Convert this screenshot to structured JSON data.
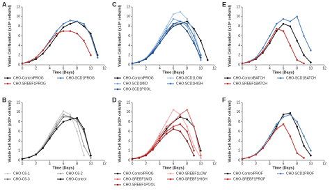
{
  "chart_data": [
    {
      "type": "line",
      "label": "A",
      "x_label": "Time (Days)",
      "y_label": "Viable Cell Number (x10⁶ cells/ml)",
      "x": [
        0,
        1,
        2,
        3,
        4,
        5,
        6,
        7,
        8,
        9,
        10,
        11
      ],
      "xlim": [
        0,
        12
      ],
      "xticks": [
        0,
        2,
        4,
        6,
        8,
        10,
        12
      ],
      "ylim": [
        0,
        12
      ],
      "yticks": [
        0,
        2,
        4,
        6,
        8,
        10,
        12
      ],
      "series": [
        {
          "name": "CHO-ControlPROG",
          "color": "#111111",
          "values": [
            0.3,
            0.6,
            1.2,
            2.3,
            4,
            6,
            7.8,
            8.5,
            9,
            8,
            6.5,
            2
          ]
        },
        {
          "name": "CHO-SCD1PROG",
          "color": "#4a7ebb",
          "values": [
            0.3,
            0.7,
            1.5,
            3,
            5,
            7,
            8.5,
            9.2,
            9,
            8.5,
            6,
            1.5
          ]
        },
        {
          "name": "CHO-SREBF1PROG",
          "color": "#c0302b",
          "values": [
            0.3,
            0.7,
            1.5,
            3,
            4.8,
            6.5,
            7,
            7,
            6.5,
            5,
            2,
            null
          ]
        }
      ]
    },
    {
      "type": "line",
      "label": "B",
      "x_label": "Time (Days)",
      "y_label": "Viable Cell Number (x10⁶ cells/ml)",
      "x": [
        0,
        1,
        2,
        3,
        4,
        5,
        6,
        7,
        8,
        9,
        10,
        11
      ],
      "xlim": [
        0,
        12
      ],
      "xticks": [
        0,
        2,
        4,
        6,
        8,
        10,
        12
      ],
      "ylim": [
        0,
        12
      ],
      "yticks": [
        0,
        2,
        4,
        6,
        8,
        10,
        12
      ],
      "series": [
        {
          "name": "CHO-C6-1",
          "color": "#c8c8c8",
          "values": [
            0.3,
            0.6,
            1.3,
            3,
            5.5,
            8,
            10.2,
            9.5,
            6,
            1,
            null,
            null
          ]
        },
        {
          "name": "CHO-C6-2",
          "color": "#a0a0a0",
          "values": [
            0.3,
            0.6,
            1.2,
            2.8,
            5,
            7.5,
            9.5,
            9,
            8,
            3,
            0.5,
            null
          ]
        },
        {
          "name": "CHO-C6-3",
          "color": "#707070",
          "values": [
            0.3,
            0.6,
            1.2,
            2.6,
            4.8,
            7,
            9,
            9,
            8.5,
            6,
            1,
            null
          ]
        },
        {
          "name": "CHO-Control",
          "color": "#111111",
          "values": [
            0.3,
            0.6,
            1.2,
            2.5,
            4.5,
            6.5,
            8,
            8.5,
            8.8,
            6.5,
            1,
            null
          ]
        }
      ]
    },
    {
      "type": "line",
      "label": "C",
      "x_label": "Time (Days)",
      "y_label": "Viable Cell Number (x10⁶ cells/ml)",
      "x": [
        0,
        1,
        2,
        3,
        4,
        5,
        6,
        7,
        8,
        9,
        10,
        11
      ],
      "xlim": [
        0,
        12
      ],
      "xticks": [
        0,
        2,
        4,
        6,
        8,
        10,
        12
      ],
      "ylim": [
        0,
        12
      ],
      "yticks": [
        0,
        2,
        4,
        6,
        8,
        10,
        12
      ],
      "series": [
        {
          "name": "CHO-ControlPROG",
          "color": "#111111",
          "values": [
            0.3,
            0.6,
            1.2,
            2.5,
            4.5,
            6.5,
            8.5,
            8.5,
            9,
            7.5,
            5,
            1
          ]
        },
        {
          "name": "CHO-SCD1LOW",
          "color": "#9cc3e6",
          "values": [
            0.3,
            0.6,
            1.4,
            3.2,
            5.5,
            8,
            10.5,
            11,
            9.5,
            7,
            2,
            null
          ]
        },
        {
          "name": "CHO-SCD1MID",
          "color": "#6fa0d8",
          "values": [
            0.3,
            0.6,
            1.3,
            3,
            5,
            7.5,
            9.5,
            9,
            8,
            5,
            1,
            null
          ]
        },
        {
          "name": "CHO-SCD1HIGH",
          "color": "#3a6fb5",
          "values": [
            0.3,
            0.6,
            1.3,
            2.8,
            5,
            7,
            8.5,
            9,
            8.5,
            6,
            2,
            null
          ]
        },
        {
          "name": "CHO-SCD1POOL",
          "color": "#1f4e8c",
          "values": [
            0.3,
            0.6,
            1.2,
            2.6,
            4.5,
            6.5,
            8,
            8.5,
            7,
            4.5,
            1.5,
            null
          ]
        }
      ]
    },
    {
      "type": "line",
      "label": "D",
      "x_label": "Time (Days)",
      "y_label": "Viable Cell Number (x10⁶ cells/ml)",
      "x": [
        0,
        1,
        2,
        3,
        4,
        5,
        6,
        7,
        8,
        9,
        10,
        11
      ],
      "xlim": [
        0,
        12
      ],
      "xticks": [
        0,
        2,
        4,
        6,
        8,
        10,
        12
      ],
      "ylim": [
        0,
        12
      ],
      "yticks": [
        0,
        2,
        4,
        6,
        8,
        10,
        12
      ],
      "series": [
        {
          "name": "CHO-ControlPROG",
          "color": "#111111",
          "values": [
            0.3,
            0.6,
            1.2,
            2.5,
            4.5,
            6.5,
            8,
            9,
            8.5,
            7,
            2,
            null
          ]
        },
        {
          "name": "CHO-SREBF1LOW",
          "color": "#f4a6a6",
          "values": [
            0.3,
            0.6,
            1.3,
            3,
            5.5,
            8,
            10.5,
            9.5,
            7,
            3,
            0.5,
            null
          ]
        },
        {
          "name": "CHO-SREBF1MID",
          "color": "#e06666",
          "values": [
            0.3,
            0.6,
            1.2,
            2.8,
            5,
            7,
            8,
            9.5,
            10.5,
            7,
            1,
            null
          ]
        },
        {
          "name": "CHO-SREBF1HIGH",
          "color": "#c0302b",
          "values": [
            0.3,
            0.5,
            1.1,
            2.5,
            4.5,
            6,
            7,
            7.5,
            6,
            2,
            null,
            null
          ]
        },
        {
          "name": "CHO-SREBF1POOL",
          "color": "#8b1a1a",
          "values": [
            0.3,
            0.5,
            1,
            2.2,
            4,
            5.5,
            6.5,
            6,
            4,
            1,
            null,
            null
          ]
        }
      ]
    },
    {
      "type": "line",
      "label": "E",
      "x_label": "Time (Days)",
      "y_label": "Viable Cell Number (x10⁶ cells/ml)",
      "x": [
        0,
        1,
        2,
        3,
        4,
        5,
        6,
        7,
        8,
        9,
        10,
        11
      ],
      "xlim": [
        0,
        12
      ],
      "xticks": [
        0,
        2,
        4,
        6,
        8,
        10,
        12
      ],
      "ylim": [
        0,
        12
      ],
      "yticks": [
        0,
        2,
        4,
        6,
        8,
        10,
        12
      ],
      "series": [
        {
          "name": "CHO-ControlBATCH",
          "color": "#111111",
          "values": [
            0.3,
            0.6,
            1.2,
            2.5,
            4.5,
            7,
            8.5,
            8,
            5,
            2,
            0.5,
            null
          ]
        },
        {
          "name": "CHO-SCD1BATCH",
          "color": "#4a7ebb",
          "values": [
            0.3,
            0.7,
            1.5,
            3.5,
            6,
            8.5,
            9.5,
            9,
            10,
            6,
            3,
            null
          ]
        },
        {
          "name": "CHO-SREBF1BATCH",
          "color": "#c0302b",
          "values": [
            0.3,
            0.6,
            1.3,
            2.8,
            5,
            7.5,
            7,
            4,
            1,
            0.3,
            null,
            null
          ]
        }
      ]
    },
    {
      "type": "line",
      "label": "F",
      "x_label": "Time (Days)",
      "y_label": "Viable Cell Number (x10⁶ cells/ml)",
      "x": [
        0,
        1,
        2,
        3,
        4,
        5,
        6,
        7,
        8,
        9,
        10,
        11
      ],
      "xlim": [
        0,
        12
      ],
      "xticks": [
        0,
        2,
        4,
        6,
        8,
        10,
        12
      ],
      "ylim": [
        0,
        12
      ],
      "yticks": [
        0,
        2,
        4,
        6,
        8,
        10,
        12
      ],
      "series": [
        {
          "name": "CHO-ControlPROF",
          "color": "#111111",
          "values": [
            0.3,
            0.6,
            1.2,
            2.5,
            4.5,
            7,
            9.5,
            9.8,
            7,
            3,
            1,
            null
          ]
        },
        {
          "name": "CHO-SCD1PROF",
          "color": "#4a7ebb",
          "values": [
            0.3,
            0.6,
            1.3,
            2.8,
            5,
            7.5,
            9,
            9.5,
            8,
            5,
            2,
            null
          ]
        },
        {
          "name": "CHO-SREBF1PROF",
          "color": "#c0302b",
          "values": [
            0.3,
            0.6,
            1.2,
            2.5,
            4.5,
            6.5,
            7.5,
            5,
            1.5,
            0.5,
            null,
            null
          ]
        }
      ]
    }
  ]
}
